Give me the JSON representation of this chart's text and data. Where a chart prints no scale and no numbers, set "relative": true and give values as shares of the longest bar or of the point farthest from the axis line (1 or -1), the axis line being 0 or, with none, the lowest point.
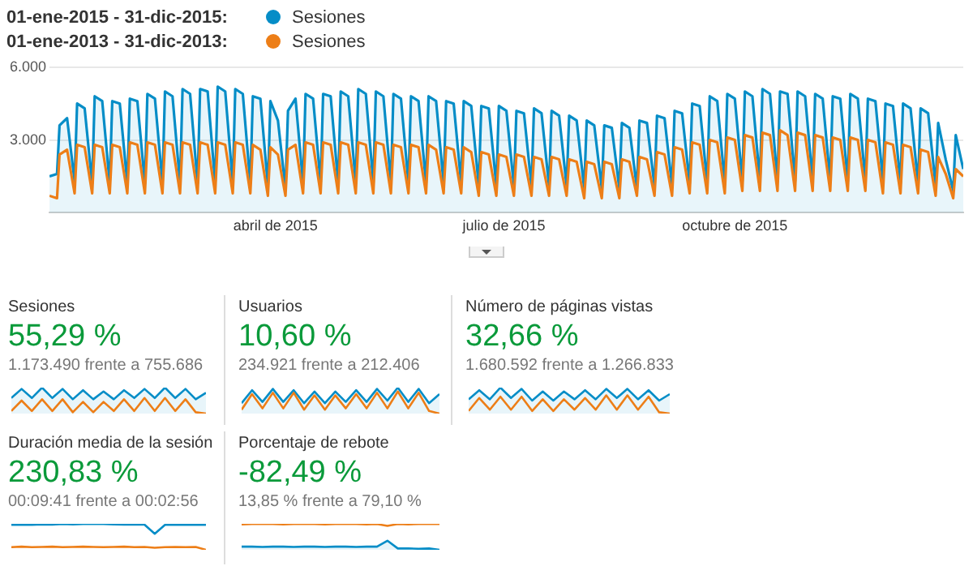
{
  "chart_data": [
    {
      "type": "line",
      "legend": "top left",
      "grid": "y",
      "annotations": [
        "01-ene-2015 - 31-dic-2015:",
        "01-ene-2013 - 31-dic-2013:"
      ],
      "xlim": [
        "2015-01-01",
        "2015-12-31"
      ],
      "xticks": [
        {
          "value": "2015-04-01",
          "label": "abril de 2015"
        },
        {
          "value": "2015-07-01",
          "label": "julio de 2015"
        },
        {
          "value": "2015-10-01",
          "label": "octubre de 2015"
        }
      ],
      "ylim": [
        0,
        6000
      ],
      "yticks": [
        {
          "value": 3000,
          "label": "3.000"
        },
        {
          "value": 6000,
          "label": "6.000"
        }
      ],
      "x": [
        "2015-01-01",
        "2015-01-04",
        "2015-01-05",
        "2015-01-08",
        "2015-01-11",
        "2015-01-12",
        "2015-01-15",
        "2015-01-18",
        "2015-01-19",
        "2015-01-22",
        "2015-01-25",
        "2015-01-26",
        "2015-01-29",
        "2015-02-01",
        "2015-02-02",
        "2015-02-05",
        "2015-02-08",
        "2015-02-09",
        "2015-02-12",
        "2015-02-15",
        "2015-02-16",
        "2015-02-19",
        "2015-02-22",
        "2015-02-23",
        "2015-02-26",
        "2015-03-01",
        "2015-03-02",
        "2015-03-05",
        "2015-03-08",
        "2015-03-09",
        "2015-03-12",
        "2015-03-15",
        "2015-03-16",
        "2015-03-19",
        "2015-03-22",
        "2015-03-23",
        "2015-03-26",
        "2015-03-29",
        "2015-03-30",
        "2015-04-02",
        "2015-04-05",
        "2015-04-06",
        "2015-04-09",
        "2015-04-12",
        "2015-04-13",
        "2015-04-16",
        "2015-04-19",
        "2015-04-20",
        "2015-04-23",
        "2015-04-26",
        "2015-04-27",
        "2015-04-30",
        "2015-05-03",
        "2015-05-04",
        "2015-05-07",
        "2015-05-10",
        "2015-05-11",
        "2015-05-14",
        "2015-05-17",
        "2015-05-18",
        "2015-05-21",
        "2015-05-24",
        "2015-05-25",
        "2015-05-28",
        "2015-05-31",
        "2015-06-01",
        "2015-06-04",
        "2015-06-07",
        "2015-06-08",
        "2015-06-11",
        "2015-06-14",
        "2015-06-15",
        "2015-06-18",
        "2015-06-21",
        "2015-06-22",
        "2015-06-25",
        "2015-06-28",
        "2015-06-29",
        "2015-07-02",
        "2015-07-05",
        "2015-07-06",
        "2015-07-09",
        "2015-07-12",
        "2015-07-13",
        "2015-07-16",
        "2015-07-19",
        "2015-07-20",
        "2015-07-23",
        "2015-07-26",
        "2015-07-27",
        "2015-07-30",
        "2015-08-02",
        "2015-08-03",
        "2015-08-06",
        "2015-08-09",
        "2015-08-10",
        "2015-08-13",
        "2015-08-16",
        "2015-08-17",
        "2015-08-20",
        "2015-08-23",
        "2015-08-24",
        "2015-08-27",
        "2015-08-30",
        "2015-08-31",
        "2015-09-03",
        "2015-09-06",
        "2015-09-07",
        "2015-09-10",
        "2015-09-13",
        "2015-09-14",
        "2015-09-17",
        "2015-09-20",
        "2015-09-21",
        "2015-09-24",
        "2015-09-27",
        "2015-09-28",
        "2015-10-01",
        "2015-10-04",
        "2015-10-05",
        "2015-10-08",
        "2015-10-11",
        "2015-10-12",
        "2015-10-15",
        "2015-10-18",
        "2015-10-19",
        "2015-10-22",
        "2015-10-25",
        "2015-10-26",
        "2015-10-29",
        "2015-11-01",
        "2015-11-02",
        "2015-11-05",
        "2015-11-08",
        "2015-11-09",
        "2015-11-12",
        "2015-11-15",
        "2015-11-16",
        "2015-11-19",
        "2015-11-22",
        "2015-11-23",
        "2015-11-26",
        "2015-11-29",
        "2015-11-30",
        "2015-12-03",
        "2015-12-06",
        "2015-12-07",
        "2015-12-10",
        "2015-12-13",
        "2015-12-14",
        "2015-12-17",
        "2015-12-20",
        "2015-12-21",
        "2015-12-24",
        "2015-12-27",
        "2015-12-28",
        "2015-12-31"
      ],
      "series": [
        {
          "name": "Sesiones",
          "type": "area",
          "color": "#058dc7",
          "values": [
            1500,
            1600,
            3600,
            3900,
            1300,
            4500,
            4300,
            1200,
            4800,
            4600,
            1200,
            4600,
            4500,
            1200,
            4700,
            4600,
            1200,
            4900,
            4700,
            1200,
            5000,
            4800,
            1200,
            5100,
            4900,
            1200,
            5100,
            5000,
            1200,
            5200,
            5000,
            1200,
            5100,
            4900,
            1200,
            4800,
            4700,
            1100,
            4600,
            3800,
            1000,
            4200,
            4700,
            1200,
            4900,
            4700,
            1200,
            4900,
            4800,
            1200,
            5000,
            4800,
            1200,
            5100,
            4900,
            1200,
            5000,
            4800,
            1200,
            4900,
            4700,
            1200,
            4800,
            4600,
            1200,
            4800,
            4600,
            1200,
            4600,
            4500,
            1200,
            4600,
            4400,
            1100,
            4400,
            4300,
            1100,
            4400,
            4200,
            1100,
            4200,
            4100,
            1100,
            4300,
            4100,
            1100,
            4200,
            4000,
            1100,
            4000,
            3800,
            1000,
            3800,
            3600,
            1000,
            3600,
            3500,
            1000,
            3700,
            3500,
            1000,
            3800,
            3700,
            1100,
            4000,
            3900,
            1100,
            4200,
            4100,
            1200,
            4500,
            4400,
            1200,
            4800,
            4600,
            1200,
            4900,
            4700,
            1300,
            5000,
            4800,
            1300,
            5100,
            4900,
            1300,
            5000,
            4900,
            1300,
            5000,
            4800,
            1300,
            4900,
            4700,
            1300,
            4800,
            4700,
            1300,
            4900,
            4700,
            1300,
            4700,
            4600,
            1300,
            4500,
            4400,
            1200,
            4500,
            4300,
            1200,
            4300,
            4100,
            1100,
            3700,
            2200,
            900,
            3200,
            1800
          ]
        },
        {
          "name": "Sesiones",
          "type": "line",
          "color": "#ed7e17",
          "values": [
            700,
            600,
            2400,
            2600,
            800,
            2800,
            2700,
            800,
            2800,
            2700,
            800,
            2800,
            2700,
            800,
            2900,
            2800,
            800,
            2900,
            2800,
            800,
            2900,
            2800,
            800,
            2900,
            2800,
            800,
            2900,
            2800,
            800,
            2900,
            2800,
            800,
            2900,
            2800,
            800,
            2800,
            2600,
            700,
            2700,
            2400,
            700,
            2600,
            2800,
            800,
            2900,
            2800,
            800,
            2900,
            2800,
            800,
            2900,
            2800,
            800,
            2900,
            2800,
            800,
            2900,
            2800,
            800,
            2800,
            2700,
            800,
            2800,
            2700,
            800,
            2800,
            2600,
            800,
            2700,
            2600,
            800,
            2700,
            2500,
            700,
            2500,
            2400,
            700,
            2400,
            2300,
            700,
            2400,
            2300,
            700,
            2300,
            2200,
            700,
            2300,
            2200,
            700,
            2200,
            2100,
            600,
            2100,
            2000,
            600,
            2100,
            2000,
            600,
            2200,
            2100,
            700,
            2300,
            2200,
            700,
            2500,
            2400,
            700,
            2700,
            2600,
            800,
            2900,
            2800,
            800,
            3000,
            2900,
            800,
            3100,
            3000,
            900,
            3200,
            3100,
            900,
            3300,
            3200,
            900,
            3400,
            3200,
            900,
            3300,
            3200,
            900,
            3200,
            3100,
            900,
            3100,
            3000,
            900,
            3100,
            3000,
            900,
            3000,
            2900,
            800,
            2900,
            2800,
            800,
            2800,
            2700,
            800,
            2600,
            2500,
            700,
            2300,
            1600,
            600,
            1800,
            1500
          ]
        }
      ]
    },
    {
      "type": "line",
      "relative": true,
      "title": "Sesiones",
      "subtitle": "55,29 %",
      "annotations": [
        "1.173.490 frente a 755.686"
      ],
      "categories": [
        null,
        null,
        null,
        null,
        null,
        null,
        null,
        null,
        null,
        null,
        null,
        null,
        null,
        null,
        null,
        null,
        null,
        null,
        null,
        null
      ],
      "series": [
        {
          "type": "area",
          "color": "#058dc7",
          "values": [
            0.6,
            0.95,
            0.6,
            1,
            0.6,
            0.95,
            0.55,
            0.9,
            0.55,
            0.85,
            0.55,
            0.9,
            0.6,
            0.95,
            0.6,
            1,
            0.6,
            0.95,
            0.55,
            0.8
          ]
        },
        {
          "type": "line",
          "color": "#ed7e17",
          "values": [
            0.1,
            0.5,
            0.1,
            0.55,
            0.1,
            0.55,
            0.05,
            0.45,
            0.05,
            0.45,
            0.1,
            0.55,
            0.1,
            0.6,
            0.1,
            0.6,
            0.1,
            0.55,
            0.05,
            0
          ]
        }
      ]
    },
    {
      "type": "line",
      "relative": true,
      "title": "Usuarios",
      "subtitle": "10,60 %",
      "annotations": [
        "234.921 frente a 212.406"
      ],
      "categories": [
        null,
        null,
        null,
        null,
        null,
        null,
        null,
        null,
        null,
        null,
        null,
        null,
        null,
        null,
        null,
        null,
        null,
        null,
        null,
        null
      ],
      "series": [
        {
          "type": "area",
          "color": "#058dc7",
          "values": [
            0.4,
            0.9,
            0.45,
            0.95,
            0.45,
            0.9,
            0.4,
            0.85,
            0.4,
            0.85,
            0.45,
            0.9,
            0.45,
            0.95,
            0.5,
            1,
            0.45,
            0.95,
            0.4,
            0.75
          ]
        },
        {
          "type": "line",
          "color": "#ed7e17",
          "values": [
            0.15,
            0.75,
            0.2,
            0.8,
            0.2,
            0.8,
            0.15,
            0.7,
            0.15,
            0.7,
            0.2,
            0.75,
            0.2,
            0.8,
            0.2,
            0.85,
            0.2,
            0.8,
            0.1,
            0
          ]
        }
      ]
    },
    {
      "type": "line",
      "relative": true,
      "title": "Número de páginas vistas",
      "subtitle": "32,66 %",
      "annotations": [
        "1.680.592 frente a 1.266.833"
      ],
      "categories": [
        null,
        null,
        null,
        null,
        null,
        null,
        null,
        null,
        null,
        null,
        null,
        null,
        null,
        null,
        null,
        null,
        null,
        null,
        null,
        null
      ],
      "series": [
        {
          "type": "area",
          "color": "#058dc7",
          "values": [
            0.55,
            0.9,
            0.55,
            1,
            0.6,
            0.95,
            0.5,
            0.85,
            0.5,
            0.85,
            0.55,
            0.9,
            0.55,
            0.95,
            0.6,
            0.95,
            0.55,
            0.9,
            0.5,
            0.75
          ]
        },
        {
          "type": "line",
          "color": "#ed7e17",
          "values": [
            0.1,
            0.6,
            0.15,
            0.65,
            0.15,
            0.65,
            0.1,
            0.55,
            0.1,
            0.55,
            0.15,
            0.6,
            0.15,
            0.7,
            0.15,
            0.7,
            0.15,
            0.65,
            0.05,
            0
          ]
        }
      ]
    },
    {
      "type": "line",
      "relative": true,
      "title": "Duración media de la sesión",
      "subtitle": "230,83 %",
      "annotations": [
        "00:09:41 frente a 00:02:56"
      ],
      "categories": [
        null,
        null,
        null,
        null,
        null,
        null,
        null,
        null,
        null,
        null,
        null,
        null,
        null,
        null,
        null,
        null,
        null,
        null,
        null,
        null
      ],
      "series": [
        {
          "type": "line",
          "color": "#058dc7",
          "values": [
            0.96,
            0.97,
            0.96,
            0.98,
            0.97,
            0.99,
            0.98,
            0.99,
            1,
            0.99,
            0.98,
            0.97,
            0.98,
            0.97,
            0.62,
            0.96,
            0.97,
            0.96,
            0.97,
            0.96
          ]
        },
        {
          "type": "line",
          "color": "#ed7e17",
          "values": [
            0.1,
            0.12,
            0.1,
            0.11,
            0.12,
            0.1,
            0.11,
            0.12,
            0.11,
            0.1,
            0.11,
            0.12,
            0.1,
            0.11,
            0.08,
            0.1,
            0.11,
            0.1,
            0.11,
            0
          ]
        }
      ]
    },
    {
      "type": "line",
      "relative": true,
      "title": "Porcentaje de rebote",
      "subtitle": "-82,49 %",
      "annotations": [
        "13,85 % frente a 79,10 %"
      ],
      "categories": [
        null,
        null,
        null,
        null,
        null,
        null,
        null,
        null,
        null,
        null,
        null,
        null,
        null,
        null,
        null,
        null,
        null,
        null,
        null,
        null
      ],
      "series": [
        {
          "type": "area",
          "color": "#058dc7",
          "values": [
            0.12,
            0.12,
            0.11,
            0.12,
            0.12,
            0.11,
            0.12,
            0.12,
            0.11,
            0.12,
            0.12,
            0.11,
            0.12,
            0.12,
            0.35,
            0.05,
            0.05,
            0.04,
            0.05,
            0
          ]
        },
        {
          "type": "line",
          "color": "#ed7e17",
          "values": [
            0.98,
            0.99,
            1,
            0.99,
            0.98,
            0.99,
            1,
            0.99,
            0.98,
            0.99,
            1,
            0.99,
            0.98,
            0.99,
            0.92,
            0.99,
            0.98,
            0.99,
            1,
            0.99
          ]
        }
      ]
    }
  ]
}
